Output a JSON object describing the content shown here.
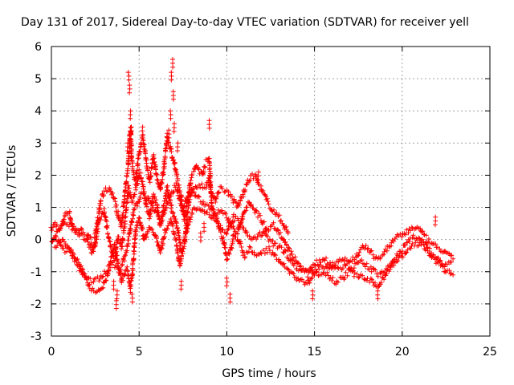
{
  "chart_data": {
    "type": "scatter",
    "title": "Day 131 of 2017, Sidereal Day-to-day VTEC variation (SDTVAR) for receiver yell",
    "xlabel": "GPS time / hours",
    "ylabel": "SDTVAR / TECUs",
    "xlim": [
      0,
      25
    ],
    "ylim": [
      -3,
      6
    ],
    "xticks": [
      0,
      5,
      10,
      15,
      20,
      25
    ],
    "yticks": [
      -3,
      -2,
      -1,
      0,
      1,
      2,
      3,
      4,
      5,
      6
    ],
    "grid": true,
    "marker": "+",
    "color": "#ff0000",
    "series": [
      {
        "name": "SDTVAR",
        "tracks": [
          [
            [
              0.0,
              0.3
            ],
            [
              0.2,
              0.5
            ],
            [
              0.5,
              0.3
            ],
            [
              0.8,
              0.8
            ],
            [
              1.0,
              0.9
            ],
            [
              1.2,
              0.4
            ],
            [
              1.6,
              0.3
            ],
            [
              2.0,
              0.2
            ],
            [
              2.4,
              -0.2
            ],
            [
              2.6,
              0.4
            ],
            [
              2.8,
              1.2
            ],
            [
              3.0,
              1.5
            ],
            [
              3.3,
              1.6
            ],
            [
              3.5,
              1.4
            ],
            [
              3.8,
              0.8
            ],
            [
              4.0,
              0.4
            ],
            [
              4.2,
              1.5
            ],
            [
              4.4,
              2.5
            ],
            [
              4.5,
              3.5
            ],
            [
              4.6,
              2.3
            ],
            [
              4.8,
              1.8
            ],
            [
              5.0,
              2.7
            ],
            [
              5.2,
              3.2
            ],
            [
              5.4,
              2.5
            ],
            [
              5.6,
              1.8
            ],
            [
              5.8,
              2.6
            ],
            [
              6.0,
              2.0
            ],
            [
              6.2,
              1.5
            ],
            [
              6.4,
              2.2
            ],
            [
              6.6,
              3.2
            ],
            [
              6.8,
              2.8
            ],
            [
              7.0,
              2.4
            ],
            [
              7.2,
              1.8
            ],
            [
              7.4,
              1.3
            ],
            [
              7.6,
              0.6
            ],
            [
              7.8,
              1.3
            ],
            [
              8.0,
              2.0
            ],
            [
              8.3,
              2.3
            ],
            [
              8.6,
              2.0
            ],
            [
              8.8,
              2.4
            ],
            [
              9.0,
              2.5
            ],
            [
              9.1,
              1.5
            ],
            [
              9.3,
              1.2
            ],
            [
              9.6,
              1.6
            ],
            [
              10.0,
              1.5
            ],
            [
              10.3,
              1.3
            ],
            [
              10.6,
              1.0
            ],
            [
              11.0,
              1.5
            ],
            [
              11.3,
              1.9
            ],
            [
              11.6,
              2.0
            ],
            [
              12.0,
              1.5
            ],
            [
              12.4,
              1.1
            ],
            [
              12.8,
              0.8
            ],
            [
              13.2,
              0.5
            ],
            [
              13.5,
              0.2
            ]
          ],
          [
            [
              0.0,
              -0.1
            ],
            [
              0.3,
              0.2
            ],
            [
              0.6,
              0.4
            ],
            [
              1.0,
              0.5
            ],
            [
              1.3,
              0.3
            ],
            [
              1.7,
              0.1
            ],
            [
              2.0,
              0.0
            ],
            [
              2.3,
              -0.4
            ],
            [
              2.5,
              -0.2
            ],
            [
              2.7,
              0.6
            ],
            [
              3.0,
              0.9
            ],
            [
              3.2,
              0.3
            ],
            [
              3.4,
              -0.3
            ],
            [
              3.6,
              -0.6
            ],
            [
              3.8,
              0.1
            ],
            [
              4.0,
              -0.3
            ],
            [
              4.2,
              0.6
            ],
            [
              4.4,
              1.6
            ],
            [
              4.6,
              1.2
            ],
            [
              4.8,
              1.5
            ],
            [
              5.0,
              2.1
            ],
            [
              5.2,
              1.8
            ],
            [
              5.4,
              1.0
            ],
            [
              5.6,
              0.7
            ],
            [
              5.8,
              1.4
            ],
            [
              6.0,
              1.1
            ],
            [
              6.2,
              0.4
            ],
            [
              6.4,
              1.0
            ],
            [
              6.6,
              1.6
            ],
            [
              6.8,
              1.1
            ],
            [
              7.0,
              0.7
            ],
            [
              7.2,
              0.3
            ],
            [
              7.4,
              -0.4
            ],
            [
              7.6,
              -0.1
            ],
            [
              7.8,
              1.0
            ],
            [
              8.0,
              1.5
            ],
            [
              8.4,
              1.7
            ],
            [
              8.8,
              1.6
            ],
            [
              9.0,
              1.9
            ],
            [
              9.2,
              0.8
            ],
            [
              9.6,
              0.9
            ],
            [
              10.0,
              0.7
            ],
            [
              10.3,
              0.4
            ],
            [
              10.6,
              0.2
            ],
            [
              11.0,
              0.9
            ],
            [
              11.3,
              1.2
            ],
            [
              11.6,
              0.9
            ],
            [
              12.0,
              0.6
            ],
            [
              12.3,
              0.3
            ],
            [
              12.6,
              0.5
            ],
            [
              13.0,
              0.2
            ],
            [
              13.3,
              -0.1
            ],
            [
              13.6,
              -0.4
            ],
            [
              14.0,
              -0.7
            ],
            [
              14.3,
              -0.9
            ],
            [
              14.6,
              -1.1
            ],
            [
              14.8,
              -0.9
            ],
            [
              15.0,
              -1.0
            ],
            [
              15.4,
              -0.8
            ],
            [
              15.8,
              -0.9
            ],
            [
              16.2,
              -0.7
            ],
            [
              16.6,
              -0.6
            ],
            [
              17.0,
              -0.7
            ],
            [
              17.4,
              -0.5
            ],
            [
              17.8,
              -0.2
            ],
            [
              18.2,
              -0.4
            ],
            [
              18.6,
              -0.6
            ],
            [
              19.0,
              -0.4
            ],
            [
              19.4,
              -0.1
            ],
            [
              19.8,
              0.1
            ],
            [
              20.2,
              0.2
            ],
            [
              20.6,
              0.4
            ],
            [
              21.0,
              0.3
            ],
            [
              21.4,
              0.0
            ],
            [
              21.8,
              -0.2
            ],
            [
              22.2,
              -0.3
            ],
            [
              22.6,
              -0.5
            ],
            [
              22.9,
              -0.6
            ]
          ],
          [
            [
              0.2,
              -0.2
            ],
            [
              0.6,
              0.0
            ],
            [
              1.0,
              -0.3
            ],
            [
              1.4,
              -0.6
            ],
            [
              1.8,
              -1.0
            ],
            [
              2.2,
              -1.5
            ],
            [
              2.6,
              -1.6
            ],
            [
              3.0,
              -1.4
            ],
            [
              3.2,
              -1.1
            ],
            [
              3.4,
              -0.6
            ],
            [
              3.6,
              -0.2
            ],
            [
              3.8,
              -0.7
            ],
            [
              4.0,
              -1.3
            ],
            [
              4.3,
              -0.9
            ],
            [
              4.5,
              -1.5
            ],
            [
              4.6,
              -1.1
            ],
            [
              4.8,
              0.3
            ],
            [
              5.0,
              0.7
            ],
            [
              5.3,
              0.0
            ],
            [
              5.6,
              0.4
            ],
            [
              5.9,
              0.2
            ],
            [
              6.2,
              -0.4
            ],
            [
              6.5,
              0.3
            ],
            [
              6.8,
              0.6
            ],
            [
              7.1,
              0.0
            ],
            [
              7.3,
              -0.8
            ],
            [
              7.5,
              -0.3
            ],
            [
              7.8,
              0.5
            ],
            [
              8.1,
              0.9
            ],
            [
              8.5,
              1.0
            ],
            [
              8.9,
              0.8
            ],
            [
              9.3,
              0.7
            ],
            [
              9.6,
              0.3
            ],
            [
              9.8,
              0.0
            ],
            [
              10.0,
              -0.6
            ],
            [
              10.2,
              -0.4
            ],
            [
              10.4,
              0.2
            ],
            [
              10.7,
              0.0
            ],
            [
              11.0,
              -0.5
            ],
            [
              11.3,
              -0.3
            ],
            [
              11.6,
              -0.5
            ],
            [
              12.0,
              -0.4
            ],
            [
              12.4,
              -0.3
            ],
            [
              12.8,
              -0.5
            ],
            [
              13.2,
              -0.8
            ],
            [
              13.6,
              -1.0
            ],
            [
              14.0,
              -1.2
            ],
            [
              14.3,
              -1.3
            ],
            [
              14.6,
              -1.4
            ],
            [
              14.8,
              -1.2
            ],
            [
              15.0,
              -1.1
            ],
            [
              15.4,
              -1.0
            ],
            [
              15.8,
              -1.1
            ],
            [
              16.2,
              -1.3
            ],
            [
              16.6,
              -1.2
            ],
            [
              17.0,
              -1.0
            ],
            [
              17.4,
              -1.1
            ],
            [
              17.8,
              -1.2
            ],
            [
              18.2,
              -1.3
            ],
            [
              18.6,
              -1.5
            ],
            [
              19.0,
              -1.1
            ],
            [
              19.4,
              -0.8
            ],
            [
              19.8,
              -0.6
            ],
            [
              20.2,
              -0.4
            ],
            [
              20.6,
              -0.2
            ],
            [
              21.0,
              -0.1
            ],
            [
              21.4,
              -0.3
            ],
            [
              21.8,
              -0.6
            ],
            [
              22.2,
              -0.8
            ],
            [
              22.5,
              -1.0
            ],
            [
              22.9,
              -1.1
            ]
          ],
          [
            [
              0.3,
              0.0
            ],
            [
              0.7,
              -0.3
            ],
            [
              1.1,
              -0.4
            ],
            [
              1.5,
              -0.8
            ],
            [
              1.9,
              -1.2
            ],
            [
              2.3,
              -1.3
            ],
            [
              2.7,
              -1.2
            ],
            [
              3.1,
              -1.0
            ],
            [
              3.5,
              -0.7
            ],
            [
              3.9,
              -1.0
            ],
            [
              4.3,
              -0.3
            ],
            [
              4.7,
              0.9
            ],
            [
              5.1,
              1.4
            ],
            [
              5.5,
              1.3
            ],
            [
              5.9,
              0.9
            ],
            [
              6.3,
              0.6
            ],
            [
              6.7,
              1.3
            ],
            [
              7.1,
              1.7
            ],
            [
              7.5,
              0.9
            ],
            [
              7.9,
              1.6
            ],
            [
              8.3,
              1.3
            ],
            [
              8.7,
              1.1
            ],
            [
              9.2,
              1.0
            ],
            [
              9.6,
              0.4
            ],
            [
              10.0,
              0.2
            ],
            [
              10.4,
              0.7
            ],
            [
              10.8,
              0.5
            ],
            [
              11.2,
              0.1
            ],
            [
              11.6,
              0.0
            ],
            [
              12.0,
              0.2
            ],
            [
              12.4,
              0.0
            ],
            [
              12.8,
              -0.2
            ],
            [
              13.2,
              -0.3
            ],
            [
              13.6,
              -0.6
            ],
            [
              14.0,
              -0.9
            ],
            [
              14.4,
              -1.0
            ],
            [
              14.8,
              -0.9
            ],
            [
              15.2,
              -0.7
            ],
            [
              15.6,
              -0.6
            ],
            [
              16.0,
              -0.8
            ],
            [
              16.4,
              -0.9
            ],
            [
              16.8,
              -0.8
            ],
            [
              17.2,
              -0.9
            ],
            [
              17.6,
              -0.7
            ],
            [
              18.0,
              -0.8
            ],
            [
              18.4,
              -1.0
            ],
            [
              18.8,
              -1.1
            ],
            [
              19.2,
              -0.9
            ],
            [
              19.6,
              -0.6
            ],
            [
              20.0,
              -0.3
            ],
            [
              20.4,
              0.0
            ],
            [
              20.8,
              0.1
            ],
            [
              21.2,
              -0.1
            ],
            [
              21.6,
              -0.4
            ],
            [
              22.0,
              -0.6
            ],
            [
              22.4,
              -0.8
            ],
            [
              22.8,
              -0.7
            ]
          ]
        ],
        "spikes": [
          [
            4.4,
            5.2
          ],
          [
            4.45,
            4.8
          ],
          [
            4.5,
            4.0
          ],
          [
            4.55,
            3.5
          ],
          [
            4.35,
            3.0
          ],
          [
            6.9,
            5.6
          ],
          [
            6.85,
            5.2
          ],
          [
            6.95,
            4.6
          ],
          [
            6.8,
            4.0
          ],
          [
            7.0,
            3.6
          ],
          [
            6.6,
            3.3
          ],
          [
            9.0,
            3.7
          ],
          [
            3.7,
            -1.9
          ],
          [
            3.75,
            -1.6
          ],
          [
            3.55,
            -1.3
          ],
          [
            4.6,
            -1.7
          ],
          [
            4.5,
            -1.4
          ],
          [
            7.4,
            -1.3
          ],
          [
            10.2,
            -1.7
          ],
          [
            10.0,
            -1.2
          ],
          [
            8.5,
            0.2
          ],
          [
            8.7,
            0.5
          ],
          [
            5.2,
            3.5
          ],
          [
            6.7,
            3.4
          ],
          [
            7.2,
            3.0
          ],
          [
            11.8,
            2.1
          ],
          [
            14.9,
            -1.6
          ],
          [
            18.6,
            -1.6
          ],
          [
            21.9,
            0.7
          ]
        ]
      }
    ]
  }
}
